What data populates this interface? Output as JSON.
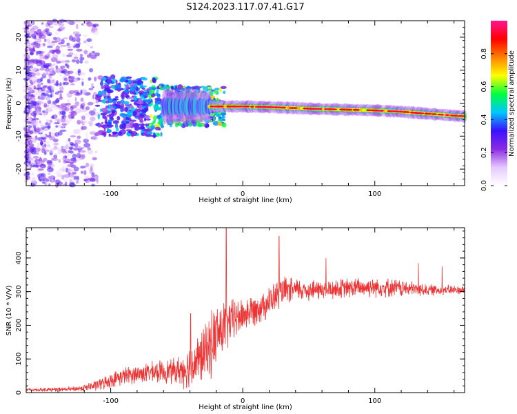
{
  "title": "S124.2023.117.07.41.G17",
  "chart_data": [
    {
      "type": "heatmap",
      "xlabel": "Height of straight line (km)",
      "ylabel": "Frequency (Hz)",
      "xlim": [
        -164,
        168
      ],
      "ylim": [
        -25,
        25
      ],
      "xticks": [
        -100,
        0,
        100
      ],
      "yticks": [
        -20,
        -10,
        0,
        10,
        20
      ],
      "colorbar": {
        "label": "Normalized spectral amplitude",
        "range": [
          0,
          1
        ],
        "ticks": [
          "0.0",
          "0.2",
          "0.4",
          "0.6",
          "0.8"
        ],
        "colors": [
          "#ffffff",
          "#e6c8ff",
          "#8a2be2",
          "#3a10ff",
          "#00c8ff",
          "#00ff40",
          "#ffff00",
          "#ff8000",
          "#ff0000",
          "#ff1493"
        ]
      },
      "ridge": {
        "x": [
          -25,
          0,
          20,
          40,
          60,
          80,
          100,
          120,
          140,
          168
        ],
        "freq": [
          -1.0,
          -1.0,
          -1.2,
          -1.5,
          -1.8,
          -2.0,
          -2.2,
          -2.6,
          -3.2,
          -4.0
        ]
      }
    },
    {
      "type": "line",
      "xlabel": "Height of straight line (km)",
      "ylabel": "SNR (10 * V/V)",
      "xlim": [
        -164,
        168
      ],
      "ylim": [
        0,
        490
      ],
      "xticks": [
        -100,
        0,
        100
      ],
      "yticks": [
        0,
        100,
        200,
        300,
        400
      ],
      "color": "#ee3333",
      "envelope": {
        "x": [
          -164,
          -130,
          -120,
          -110,
          -90,
          -70,
          -50,
          -40,
          -30,
          -20,
          -10,
          0,
          10,
          20,
          30,
          40,
          60,
          80,
          100,
          120,
          140,
          168
        ],
        "mean": [
          8,
          10,
          14,
          22,
          50,
          60,
          65,
          75,
          110,
          170,
          210,
          230,
          250,
          270,
          300,
          305,
          305,
          310,
          315,
          310,
          305,
          305
        ],
        "amp": [
          6,
          8,
          12,
          20,
          30,
          35,
          45,
          80,
          95,
          120,
          80,
          60,
          55,
          55,
          50,
          40,
          35,
          35,
          35,
          30,
          20,
          15
        ]
      },
      "spikes": [
        {
          "x": -12.5,
          "y": 490
        },
        {
          "x": 27.5,
          "y": 465
        },
        {
          "x": -39.5,
          "y": 235
        },
        {
          "x": 63,
          "y": 400
        },
        {
          "x": 133,
          "y": 385
        },
        {
          "x": 151,
          "y": 375
        }
      ]
    }
  ]
}
